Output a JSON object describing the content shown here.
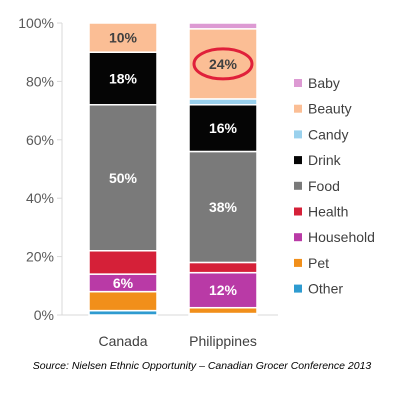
{
  "chart_data": {
    "type": "bar",
    "stacked": true,
    "categories": [
      "Canada",
      "Philippines"
    ],
    "y_ticks": [
      "0%",
      "20%",
      "40%",
      "60%",
      "80%",
      "100%"
    ],
    "ylim": [
      0,
      100
    ],
    "grid": false,
    "legend_position": "right",
    "series": [
      {
        "name": "Other",
        "color": "#2e9bd0",
        "values": [
          1.5,
          0.5
        ],
        "labels": [
          "",
          ""
        ]
      },
      {
        "name": "Pet",
        "color": "#f18f1a",
        "values": [
          6.5,
          2
        ],
        "labels": [
          "",
          ""
        ]
      },
      {
        "name": "Household",
        "color": "#b93aa6",
        "values": [
          6,
          12
        ],
        "labels": [
          "6%",
          "12%"
        ]
      },
      {
        "name": "Health",
        "color": "#d52038",
        "values": [
          8,
          3.5
        ],
        "labels": [
          "",
          ""
        ]
      },
      {
        "name": "Food",
        "color": "#7a7a7a",
        "values": [
          50,
          38
        ],
        "labels": [
          "50%",
          "38%"
        ]
      },
      {
        "name": "Drink",
        "color": "#050505",
        "values": [
          18,
          16
        ],
        "labels": [
          "18%",
          "16%"
        ]
      },
      {
        "name": "Candy",
        "color": "#9ad1ed",
        "values": [
          0,
          2
        ],
        "labels": [
          "",
          ""
        ]
      },
      {
        "name": "Beauty",
        "color": "#fbbe95",
        "values": [
          10,
          24
        ],
        "labels": [
          "10%",
          "24%"
        ]
      },
      {
        "name": "Baby",
        "color": "#dd9ad3",
        "values": [
          0,
          2
        ],
        "labels": [
          "",
          ""
        ]
      }
    ],
    "legend": [
      "Baby",
      "Beauty",
      "Candy",
      "Drink",
      "Food",
      "Health",
      "Household",
      "Pet",
      "Other"
    ],
    "highlight": {
      "category": "Philippines",
      "series": "Beauty",
      "color": "#e0203a"
    }
  },
  "source": "Source: Nielsen Ethnic Opportunity – Canadian Grocer Conference 2013"
}
